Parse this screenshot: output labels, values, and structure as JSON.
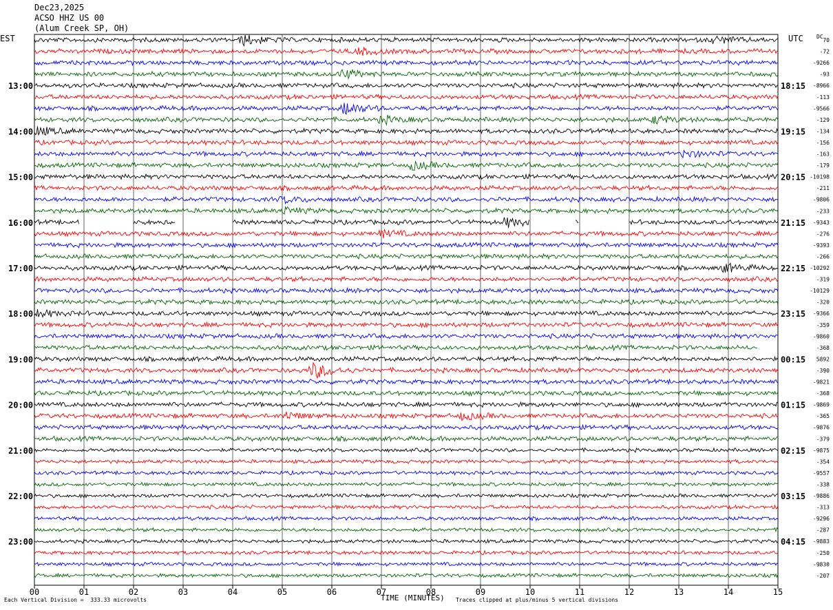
{
  "header": {
    "date": "Dec23,2025",
    "station": "ACSO HHZ US 00",
    "location": "(Alum Creek SP, OH)"
  },
  "left_zone": "EST",
  "right_zone": "UTC",
  "right_dc_label": "DC",
  "footer": {
    "scale_note": "Each Vertical Division =  333.33 microvolts",
    "x_axis_title": "TIME (MINUTES)",
    "clip_note": "Traces clipped at plus/minus 5 vertical divisions"
  },
  "colors": {
    "trace_cycle": [
      "#000000",
      "#ff0000",
      "#0000ff",
      "#006400"
    ],
    "grid": "#000000",
    "background": "#ffffff"
  },
  "chart_data": {
    "type": "helicorder",
    "x_ticks": [
      "00",
      "01",
      "02",
      "03",
      "04",
      "05",
      "06",
      "07",
      "08",
      "09",
      "10",
      "11",
      "12",
      "13",
      "14",
      "15"
    ],
    "xlim": [
      0,
      15
    ],
    "rows_per_hour": 4,
    "left_hour_labels": [
      "13:00",
      "14:00",
      "15:00",
      "16:00",
      "17:00",
      "18:00",
      "19:00",
      "20:00",
      "21:00",
      "22:00",
      "23:00"
    ],
    "left_hour_label_rows": [
      4,
      8,
      12,
      16,
      20,
      24,
      28,
      32,
      36,
      40,
      44
    ],
    "right_hour_labels": [
      "18:15",
      "19:15",
      "20:15",
      "21:15",
      "22:15",
      "23:15",
      "00:15",
      "01:15",
      "02:15",
      "03:15",
      "04:15"
    ],
    "right_offsets": [
      "70",
      "-72",
      "-9266",
      "-93",
      "-8966",
      "-113",
      "-9566",
      "-129",
      "-134",
      "-156",
      "-163",
      "-179",
      "-10198",
      "-211",
      "-9806",
      "-233",
      "-9343",
      "-276",
      "-9393",
      "-266",
      "-10292",
      "-319",
      "-10129",
      "-320",
      "-9366",
      "-359",
      "-9860",
      "-368",
      "5892",
      "-390",
      "-9821",
      "-368",
      "-9869",
      "-365",
      "-9876",
      "-379",
      "-9875",
      "-354",
      "-9557",
      "-338",
      "-9886",
      "-313",
      "-9296",
      "-287",
      "-9883",
      "-250",
      "-9830",
      "-207"
    ],
    "events": [
      {
        "row": 29,
        "minute": 5.6,
        "strength": 3.2
      },
      {
        "row": 6,
        "minute": 6.25,
        "strength": 2.2
      },
      {
        "row": 0,
        "minute": 4.2,
        "strength": 1.8
      },
      {
        "row": 16,
        "minute": 9.5,
        "strength": 1.5
      },
      {
        "row": 3,
        "minute": 6.2,
        "strength": 1.5
      },
      {
        "row": 1,
        "minute": 6.5,
        "strength": 1.3
      },
      {
        "row": 11,
        "minute": 7.6,
        "strength": 1.4
      },
      {
        "row": 20,
        "minute": 13.9,
        "strength": 1.4
      },
      {
        "row": 7,
        "minute": 12.5,
        "strength": 1.2
      },
      {
        "row": 7,
        "minute": 7.0,
        "strength": 1.2
      },
      {
        "row": 10,
        "minute": 13.1,
        "strength": 1.2
      },
      {
        "row": 8,
        "minute": 0.05,
        "strength": 1.4
      },
      {
        "row": 33,
        "minute": 8.6,
        "strength": 1.2
      },
      {
        "row": 33,
        "minute": 5.05,
        "strength": 1.2
      },
      {
        "row": 0,
        "minute": 13.7,
        "strength": 1.2
      },
      {
        "row": 15,
        "minute": 5.0,
        "strength": 1.1
      },
      {
        "row": 14,
        "minute": 5.0,
        "strength": 1.1
      },
      {
        "row": 17,
        "minute": 7.0,
        "strength": 1.1
      },
      {
        "row": 24,
        "minute": 0.05,
        "strength": 1.1
      }
    ],
    "gaps": [
      {
        "row": 16,
        "from": 0.9,
        "to": 2.0
      },
      {
        "row": 16,
        "from": 2.85,
        "to": 4.0
      },
      {
        "row": 16,
        "from": 10.0,
        "to": 10.9
      },
      {
        "row": 16,
        "from": 11.0,
        "to": 12.0
      },
      {
        "row": 27,
        "from": 14.6,
        "to": 15.0
      }
    ]
  }
}
